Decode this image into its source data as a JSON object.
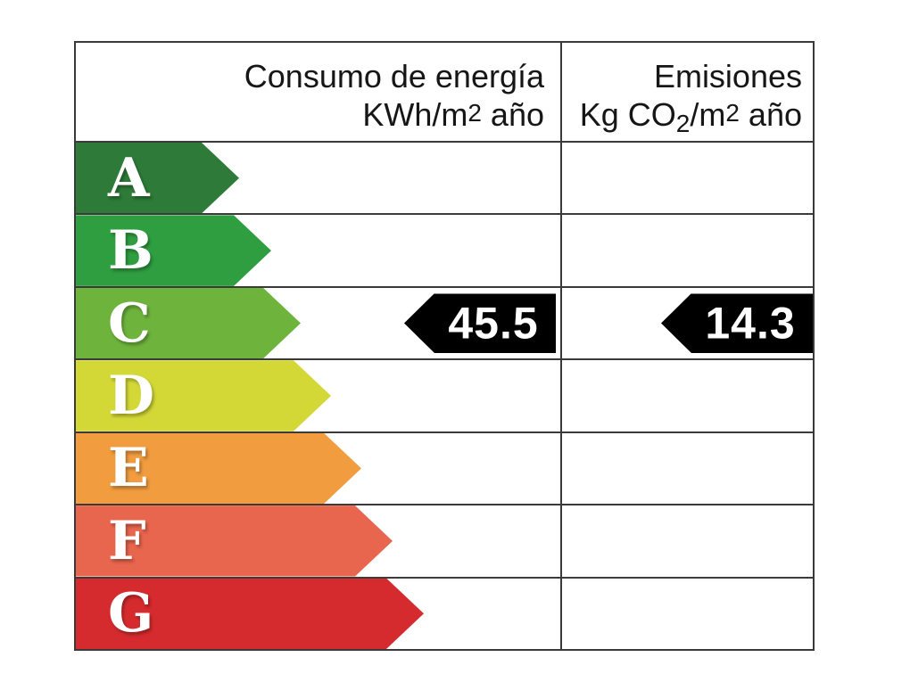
{
  "colors": {
    "border": "#3a3a3a",
    "background": "#ffffff",
    "indicator_fill": "#000000",
    "indicator_text": "#ffffff",
    "rating_a": "#2e7a38",
    "rating_b": "#2f9e41",
    "rating_c": "#6db33c",
    "rating_d": "#d3d836",
    "rating_e": "#f09c3f",
    "rating_f": "#e8654e",
    "rating_g": "#d52b2e"
  },
  "table": {
    "header": {
      "consumption_title": "Consumo de energía",
      "consumption_unit": {
        "prefix": "KWh/m",
        "sup": "2",
        "suffix": " año"
      },
      "emissions_title": "Emisiones",
      "emissions_unit": {
        "prefix": "Kg CO",
        "sub": "2",
        "mid": "/m",
        "sup": "2",
        "suffix": " año"
      }
    },
    "ratings": [
      {
        "letter": "A",
        "color": "#2e7a38"
      },
      {
        "letter": "B",
        "color": "#2f9e41"
      },
      {
        "letter": "C",
        "color": "#6db33c"
      },
      {
        "letter": "D",
        "color": "#d3d836"
      },
      {
        "letter": "E",
        "color": "#f09c3f"
      },
      {
        "letter": "F",
        "color": "#e8654e"
      },
      {
        "letter": "G",
        "color": "#d52b2e"
      }
    ],
    "indicators": {
      "consumption": {
        "value": "45.5",
        "row": "C"
      },
      "emissions": {
        "value": "14.3",
        "row": "C"
      }
    }
  },
  "chart_data": {
    "type": "bar",
    "title": "",
    "categories": [
      "A",
      "B",
      "C",
      "D",
      "E",
      "F",
      "G"
    ],
    "bar_colors": [
      "#2e7a38",
      "#2f9e41",
      "#6db33c",
      "#d3d836",
      "#f09c3f",
      "#e8654e",
      "#d52b2e"
    ],
    "series": [
      {
        "name": "Consumo de energía KWh/m2 año",
        "rating": "C",
        "value": 45.5
      },
      {
        "name": "Emisiones Kg CO2/m2 año",
        "rating": "C",
        "value": 14.3
      }
    ],
    "legend_position": "none",
    "grid": true
  }
}
